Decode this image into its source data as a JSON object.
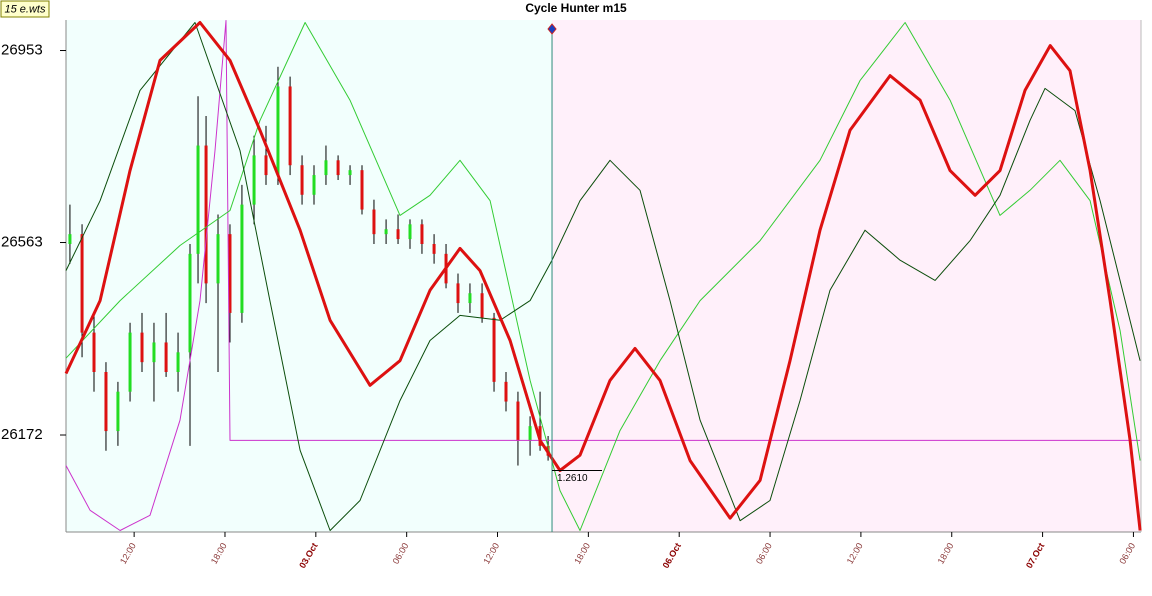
{
  "chart_data": {
    "type": "candlestick",
    "title": "Cycle Hunter m15",
    "badge": "15 e.wts",
    "xlim": [
      0,
      71
    ],
    "ylim": [
      25975,
      27015
    ],
    "yticks": [
      26953,
      26563,
      26172
    ],
    "xticks": [
      {
        "value": 4.5,
        "label": "12:00"
      },
      {
        "value": 10.5,
        "label": "18:00"
      },
      {
        "value": 16.5,
        "label": "03.Oct"
      },
      {
        "value": 22.5,
        "label": "06:00"
      },
      {
        "value": 28.5,
        "label": "12:00"
      },
      {
        "value": 34.5,
        "label": "18:00"
      },
      {
        "value": 40.5,
        "label": "06.Oct"
      },
      {
        "value": 46.5,
        "label": "06:00"
      },
      {
        "value": 52.5,
        "label": "12:00"
      },
      {
        "value": 58.5,
        "label": "18:00"
      },
      {
        "value": 64.5,
        "label": "07.Oct"
      },
      {
        "value": 70.5,
        "label": "06:00"
      }
    ],
    "date_tick_color": "#8b0000",
    "time_tick_color": "#8b3a3a",
    "now_x": 32.1,
    "past_background": "#f2fffd",
    "future_background": "#fff0fa",
    "now_line_color": "#2e8b7a",
    "up_color": "#22dd22",
    "down_color": "#dd1111",
    "candles": {
      "x": [
        0.26,
        1.06,
        1.85,
        2.64,
        3.43,
        4.23,
        5.02,
        5.81,
        6.61,
        7.4,
        8.19,
        8.72,
        9.25,
        10.04,
        10.83,
        11.62,
        12.42,
        13.21,
        14.0,
        14.8,
        15.59,
        16.38,
        17.17,
        17.97,
        18.76,
        19.55,
        20.34,
        21.14,
        21.93,
        22.72,
        23.51,
        24.31,
        25.1,
        25.89,
        26.68,
        27.48,
        28.27,
        29.06,
        29.85,
        30.65,
        31.31,
        31.84
      ],
      "open": [
        26560,
        26580,
        26380,
        26300,
        26180,
        26260,
        26380,
        26320,
        26360,
        26300,
        26340,
        26540,
        26760,
        26480,
        26580,
        26420,
        26640,
        26740,
        26700,
        26880,
        26720,
        26660,
        26700,
        26730,
        26700,
        26710,
        26630,
        26580,
        26590,
        26570,
        26600,
        26560,
        26540,
        26480,
        26440,
        26460,
        26410,
        26280,
        26240,
        26160,
        26190,
        26150
      ],
      "high": [
        26640,
        26600,
        26420,
        26320,
        26280,
        26400,
        26420,
        26400,
        26420,
        26380,
        26560,
        26860,
        26820,
        26620,
        26600,
        26680,
        26780,
        26800,
        26920,
        26900,
        26740,
        26720,
        26760,
        26740,
        26720,
        26720,
        26650,
        26610,
        26620,
        26610,
        26610,
        26580,
        26560,
        26500,
        26480,
        26480,
        26420,
        26300,
        26260,
        26210,
        26260,
        26170
      ],
      "low": [
        26520,
        26330,
        26260,
        26140,
        26150,
        26240,
        26300,
        26240,
        26290,
        26260,
        26150,
        26480,
        26440,
        26300,
        26360,
        26400,
        26600,
        26680,
        26680,
        26700,
        26640,
        26640,
        26680,
        26690,
        26680,
        26620,
        26560,
        26560,
        26560,
        26550,
        26540,
        26520,
        26470,
        26420,
        26420,
        26400,
        26260,
        26220,
        26110,
        26130,
        26140,
        26120
      ],
      "close": [
        26580,
        26380,
        26300,
        26180,
        26260,
        26380,
        26320,
        26360,
        26300,
        26340,
        26540,
        26760,
        26480,
        26580,
        26420,
        26640,
        26740,
        26700,
        26880,
        26720,
        26660,
        26700,
        26730,
        26700,
        26710,
        26630,
        26580,
        26590,
        26570,
        26600,
        26560,
        26540,
        26480,
        26440,
        26460,
        26410,
        26280,
        26240,
        26160,
        26190,
        26150,
        26130
      ]
    },
    "lines": [
      {
        "color": "#cc33cc",
        "line_width": 1,
        "x": [
          0,
          1.59,
          3.57,
          5.55,
          7.53,
          8.85,
          9.84,
          10.57,
          10.83,
          70.94
        ],
        "values": [
          26110,
          26019,
          25978,
          26009,
          26202,
          26445,
          26750,
          27014,
          26161,
          26161
        ]
      },
      {
        "color": "#33cc33",
        "line_width": 1,
        "x": [
          0,
          3.57,
          7.53,
          10.83,
          12.81,
          15.79,
          18.76,
          22.06,
          24.04,
          26.02,
          28.01,
          30.65,
          32.63,
          33.95,
          36.59,
          39.23,
          41.88,
          45.84,
          49.8,
          52.44,
          55.42,
          58.39,
          61.69,
          63.67,
          65.65,
          67.64,
          69.62,
          70.94
        ],
        "values": [
          26328,
          26445,
          26557,
          26628,
          26811,
          27010,
          26852,
          26618,
          26659,
          26730,
          26648,
          26283,
          26059,
          25978,
          26181,
          26323,
          26445,
          26567,
          26730,
          26892,
          27010,
          26852,
          26618,
          26669,
          26730,
          26648,
          26384,
          26120
        ]
      },
      {
        "color": "#0b4d0b",
        "line_width": 1,
        "x": [
          0,
          2.25,
          4.89,
          8.52,
          11.49,
          13.47,
          15.46,
          17.44,
          19.42,
          22.06,
          24.04,
          26.02,
          28.67,
          30.65,
          32.1,
          33.95,
          35.93,
          37.91,
          39.89,
          41.88,
          44.52,
          46.5,
          48.48,
          50.46,
          52.77,
          55.09,
          57.4,
          59.71,
          61.69,
          63.67,
          64.66,
          66.64,
          68.3,
          70.94
        ],
        "values": [
          26506,
          26648,
          26872,
          27010,
          26750,
          26445,
          26141,
          25978,
          26039,
          26242,
          26364,
          26415,
          26405,
          26445,
          26527,
          26648,
          26730,
          26669,
          26445,
          26202,
          25998,
          26039,
          26242,
          26466,
          26588,
          26527,
          26486,
          26567,
          26659,
          26811,
          26876,
          26831,
          26648,
          26323
        ]
      },
      {
        "color": "#dd1111",
        "line_width": 3,
        "x": [
          0,
          2.25,
          4.23,
          6.21,
          8.85,
          10.83,
          12.81,
          15.46,
          17.44,
          20.08,
          22.06,
          24.04,
          26.02,
          27.34,
          29.33,
          31.31,
          32.63,
          33.95,
          35.93,
          37.58,
          39.23,
          41.22,
          43.86,
          45.84,
          47.82,
          49.8,
          51.78,
          54.43,
          56.41,
          58.39,
          60.04,
          61.69,
          63.34,
          65.0,
          66.31,
          67.64,
          68.96,
          70.28,
          70.94
        ],
        "values": [
          26297,
          26445,
          26709,
          26933,
          27010,
          26933,
          26791,
          26588,
          26405,
          26273,
          26323,
          26466,
          26551,
          26506,
          26364,
          26161,
          26100,
          26131,
          26283,
          26348,
          26283,
          26120,
          26003,
          26080,
          26323,
          26588,
          26791,
          26902,
          26852,
          26709,
          26659,
          26709,
          26872,
          26963,
          26912,
          26709,
          26445,
          26161,
          25978
        ]
      }
    ],
    "annotation": {
      "text": "1.2610",
      "x": 32.1,
      "y": 26100
    }
  }
}
